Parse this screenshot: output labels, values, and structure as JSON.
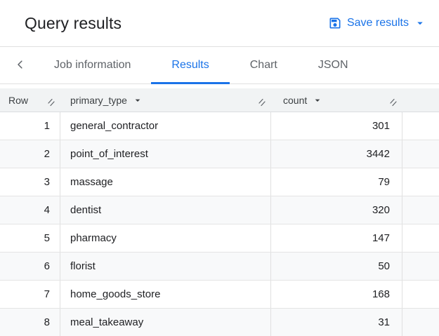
{
  "header": {
    "title": "Query results",
    "save_button": {
      "label": "Save results",
      "icon": "save-icon",
      "dropdown_icon": "arrow-drop-down-icon"
    }
  },
  "tabs": {
    "back_icon": "chevron-left-icon",
    "items": [
      {
        "label": "Job information",
        "active": false
      },
      {
        "label": "Results",
        "active": true
      },
      {
        "label": "Chart",
        "active": false
      },
      {
        "label": "JSON",
        "active": false
      }
    ]
  },
  "table": {
    "columns": [
      {
        "label": "Row",
        "sortable": false,
        "resizable": true
      },
      {
        "label": "primary_type",
        "sortable": true,
        "resizable": true
      },
      {
        "label": "count",
        "sortable": true,
        "resizable": true
      }
    ],
    "rows": [
      {
        "row": "1",
        "primary_type": "general_contractor",
        "count": "301"
      },
      {
        "row": "2",
        "primary_type": "point_of_interest",
        "count": "3442"
      },
      {
        "row": "3",
        "primary_type": "massage",
        "count": "79"
      },
      {
        "row": "4",
        "primary_type": "dentist",
        "count": "320"
      },
      {
        "row": "5",
        "primary_type": "pharmacy",
        "count": "147"
      },
      {
        "row": "6",
        "primary_type": "florist",
        "count": "50"
      },
      {
        "row": "7",
        "primary_type": "home_goods_store",
        "count": "168"
      },
      {
        "row": "8",
        "primary_type": "meal_takeaway",
        "count": "31"
      }
    ]
  },
  "colors": {
    "accent_blue": "#1a73e8",
    "title_text": "#202124",
    "tab_inactive_text": "#5f6368",
    "table_header_bg": "#f1f3f4",
    "row_stripe_bg": "#f8f9fa",
    "border": "#e0e0e0"
  }
}
